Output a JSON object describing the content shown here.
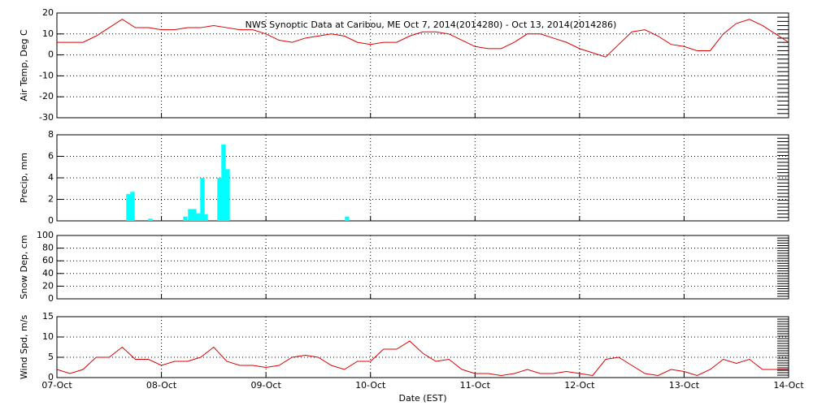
{
  "chart_data": [
    {
      "type": "line",
      "title": "NWS Synoptic Data at Caribou, ME   Oct  7, 2014(2014280) - Oct 13, 2014(2014286)",
      "ylabel": "Air Temp, Deg C",
      "color": "#dd0000",
      "grid": true,
      "xlim": [
        0,
        7
      ],
      "xticks": [
        0,
        1,
        2,
        3,
        4,
        5,
        6,
        7
      ],
      "ylim": [
        -30,
        20
      ],
      "yticks": [
        -30,
        -20,
        -10,
        0,
        10,
        20
      ],
      "x": [
        0,
        0.125,
        0.25,
        0.375,
        0.5,
        0.625,
        0.75,
        0.875,
        1,
        1.125,
        1.25,
        1.375,
        1.5,
        1.625,
        1.75,
        1.875,
        2,
        2.125,
        2.25,
        2.375,
        2.5,
        2.625,
        2.75,
        2.875,
        3,
        3.125,
        3.25,
        3.375,
        3.5,
        3.625,
        3.75,
        3.875,
        4,
        4.125,
        4.25,
        4.375,
        4.5,
        4.625,
        4.75,
        4.875,
        5,
        5.125,
        5.25,
        5.375,
        5.5,
        5.625,
        5.75,
        5.875,
        6,
        6.125,
        6.25,
        6.375,
        6.5,
        6.625,
        6.75,
        6.875,
        7
      ],
      "values": [
        6,
        6,
        6,
        9,
        13,
        17,
        13,
        13,
        12,
        12,
        13,
        13,
        14,
        13,
        12,
        12,
        10,
        7,
        6,
        8,
        9,
        10,
        9,
        6,
        5,
        6,
        6,
        9,
        11,
        11,
        10,
        7,
        4,
        3,
        3,
        6,
        10,
        10,
        8,
        6,
        3,
        1,
        -1,
        5,
        11,
        12,
        9,
        5,
        4,
        2,
        2,
        10,
        15,
        17,
        14,
        10,
        6
      ]
    },
    {
      "type": "bar",
      "ylabel": "Precip, mm",
      "color": "#00ffff",
      "grid": true,
      "xlim": [
        0,
        7
      ],
      "xticks": [
        0,
        1,
        2,
        3,
        4,
        5,
        6,
        7
      ],
      "ylim": [
        0,
        8
      ],
      "yticks": [
        0,
        2,
        4,
        6,
        8
      ],
      "x": [
        0.684,
        0.723,
        0.894,
        1.229,
        1.275,
        1.314,
        1.353,
        1.392,
        1.423,
        1.555,
        1.594,
        1.633,
        2.776
      ],
      "values": [
        2.5,
        2.7,
        0.2,
        0.4,
        1.1,
        1.1,
        0.7,
        4.0,
        0.6,
        4.0,
        7.1,
        4.8,
        0.4
      ]
    },
    {
      "type": "line",
      "ylabel": "Snow Dep, cm",
      "color": "#dd0000",
      "grid": true,
      "xlim": [
        0,
        7
      ],
      "xticks": [
        0,
        1,
        2,
        3,
        4,
        5,
        6,
        7
      ],
      "ylim": [
        0,
        100
      ],
      "yticks": [
        0,
        20,
        40,
        60,
        80,
        100
      ],
      "x": [],
      "values": []
    },
    {
      "type": "line",
      "ylabel": "Wind Spd, m/s",
      "xlabel": "Date (EST)",
      "color": "#dd0000",
      "grid": true,
      "xlim": [
        0,
        7
      ],
      "xticks": [
        {
          "value": 0,
          "label": "07-Oct"
        },
        {
          "value": 1,
          "label": "08-Oct"
        },
        {
          "value": 2,
          "label": "09-Oct"
        },
        {
          "value": 3,
          "label": "10-Oct"
        },
        {
          "value": 4,
          "label": "11-Oct"
        },
        {
          "value": 5,
          "label": "12-Oct"
        },
        {
          "value": 6,
          "label": "13-Oct"
        },
        {
          "value": 7,
          "label": "14-Oct"
        }
      ],
      "ylim": [
        0,
        15
      ],
      "yticks": [
        0,
        5,
        10,
        15
      ],
      "x": [
        0,
        0.125,
        0.25,
        0.375,
        0.5,
        0.625,
        0.75,
        0.875,
        1,
        1.125,
        1.25,
        1.375,
        1.5,
        1.625,
        1.75,
        1.875,
        2,
        2.125,
        2.25,
        2.375,
        2.5,
        2.625,
        2.75,
        2.875,
        3,
        3.125,
        3.25,
        3.375,
        3.5,
        3.625,
        3.75,
        3.875,
        4,
        4.125,
        4.25,
        4.375,
        4.5,
        4.625,
        4.75,
        4.875,
        5,
        5.125,
        5.25,
        5.375,
        5.5,
        5.625,
        5.75,
        5.875,
        6,
        6.125,
        6.25,
        6.375,
        6.5,
        6.625,
        6.75,
        6.875,
        7
      ],
      "values": [
        2,
        1,
        2,
        5,
        5,
        7.5,
        4.5,
        4.5,
        3,
        4,
        4,
        5,
        7.5,
        4,
        3,
        3,
        2.5,
        3,
        5,
        5.5,
        5,
        3,
        2,
        4,
        4,
        7,
        7,
        9,
        6,
        4,
        4.5,
        2,
        1,
        1,
        0.5,
        1,
        2,
        1,
        1,
        1.5,
        1,
        0.5,
        4.5,
        5,
        3,
        1,
        0.5,
        2,
        1.5,
        0.5,
        2,
        4.5,
        3.5,
        4.5,
        2,
        2,
        2
      ]
    }
  ]
}
